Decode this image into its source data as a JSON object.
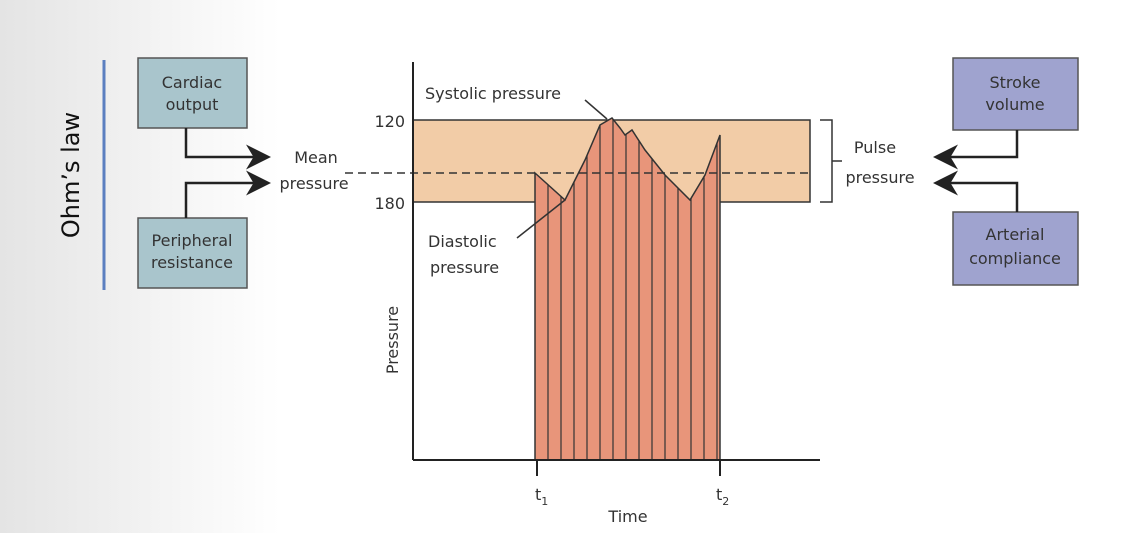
{
  "title": "Ohm’s law",
  "left_boxes": [
    [
      "Cardiac",
      "output"
    ],
    [
      "Peripheral",
      "resistance"
    ]
  ],
  "right_boxes": [
    [
      "Stroke",
      "volume"
    ],
    [
      "Arterial",
      "compliance"
    ]
  ],
  "mean_pressure": [
    "Mean",
    "pressure"
  ],
  "pulse_pressure": [
    "Pulse",
    "pressure"
  ],
  "systolic_pressure": "Systolic pressure",
  "diastolic_pressure": [
    "Diastolic",
    "pressure"
  ],
  "pressure_levels": [
    "120",
    "180"
  ],
  "y_axis_label": "Pressure",
  "x_axis_label": "Time",
  "time_ticks": [
    {
      "base": "t",
      "sub": "1"
    },
    {
      "base": "t",
      "sub": "2"
    }
  ]
}
